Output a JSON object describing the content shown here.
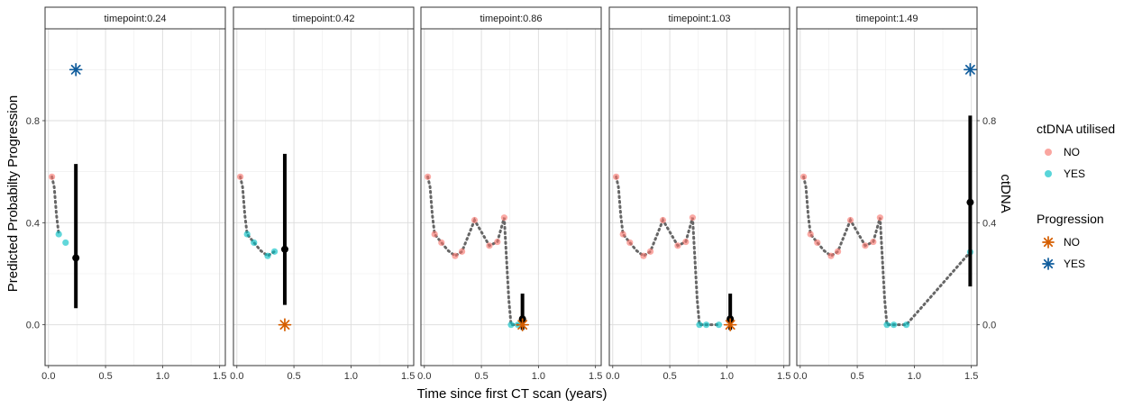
{
  "chart_data": {
    "type": "scatter",
    "xlabel": "Time since first CT scan (years)",
    "ylabel": "Predicted Probabilty Progression",
    "y2label": "ctDNA",
    "xlim": [
      -0.03,
      1.55
    ],
    "ylim": [
      -0.16,
      1.16
    ],
    "x_ticks": [
      0.0,
      0.5,
      1.0,
      1.5
    ],
    "x_tick_labels": [
      "0.0",
      "0.5",
      "1.0",
      "1.5"
    ],
    "y_ticks": [
      0.0,
      0.4,
      0.8
    ],
    "y_tick_labels": [
      "0.0",
      "0.4",
      "0.8"
    ],
    "grid": true,
    "colors": {
      "ctdna_no": "#F8766D",
      "ctdna_yes": "#00BFC4",
      "progression_no": "#D55E00",
      "progression_yes": "#0F5C9C",
      "path": "#666666",
      "estimate": "#000000"
    },
    "legends": [
      {
        "title": "ctDNA utilised",
        "kind": "dot",
        "entries": [
          {
            "label": "NO",
            "color": "#F8766D"
          },
          {
            "label": "YES",
            "color": "#00BFC4"
          }
        ]
      },
      {
        "title": "Progression",
        "kind": "star",
        "entries": [
          {
            "label": "NO",
            "color": "#D55E00"
          },
          {
            "label": "YES",
            "color": "#0F5C9C"
          }
        ]
      }
    ],
    "panels": [
      {
        "strip": "timepoint:0.24",
        "points": [
          {
            "x": 0.03,
            "y": 0.58,
            "ctdna": "NO"
          },
          {
            "x": 0.09,
            "y": 0.355,
            "ctdna": "YES"
          },
          {
            "x": 0.15,
            "y": 0.322,
            "ctdna": "YES"
          }
        ],
        "path": [
          [
            0.03,
            0.58
          ],
          [
            0.05,
            0.54
          ],
          [
            0.07,
            0.43
          ],
          [
            0.09,
            0.355
          ]
        ],
        "estimate": {
          "x": 0.24,
          "y": 0.262,
          "low": 0.065,
          "high": 0.63
        },
        "progression": {
          "x": 0.24,
          "y": 1.0,
          "status": "YES"
        }
      },
      {
        "strip": "timepoint:0.42",
        "points": [
          {
            "x": 0.03,
            "y": 0.58,
            "ctdna": "NO"
          },
          {
            "x": 0.09,
            "y": 0.355,
            "ctdna": "YES"
          },
          {
            "x": 0.15,
            "y": 0.322,
            "ctdna": "YES"
          },
          {
            "x": 0.27,
            "y": 0.27,
            "ctdna": "YES"
          },
          {
            "x": 0.33,
            "y": 0.287,
            "ctdna": "YES"
          }
        ],
        "path": [
          [
            0.03,
            0.58
          ],
          [
            0.05,
            0.54
          ],
          [
            0.07,
            0.43
          ],
          [
            0.09,
            0.355
          ],
          [
            0.15,
            0.322
          ],
          [
            0.21,
            0.29
          ],
          [
            0.27,
            0.27
          ],
          [
            0.33,
            0.287
          ]
        ],
        "estimate": {
          "x": 0.42,
          "y": 0.296,
          "low": 0.078,
          "high": 0.67
        },
        "progression": {
          "x": 0.42,
          "y": 0.0,
          "status": "NO"
        }
      },
      {
        "strip": "timepoint:0.86",
        "points": [
          {
            "x": 0.03,
            "y": 0.58,
            "ctdna": "NO"
          },
          {
            "x": 0.09,
            "y": 0.355,
            "ctdna": "NO"
          },
          {
            "x": 0.15,
            "y": 0.322,
            "ctdna": "NO"
          },
          {
            "x": 0.27,
            "y": 0.27,
            "ctdna": "NO"
          },
          {
            "x": 0.33,
            "y": 0.287,
            "ctdna": "NO"
          },
          {
            "x": 0.44,
            "y": 0.41,
            "ctdna": "NO"
          },
          {
            "x": 0.57,
            "y": 0.31,
            "ctdna": "NO"
          },
          {
            "x": 0.64,
            "y": 0.325,
            "ctdna": "NO"
          },
          {
            "x": 0.7,
            "y": 0.42,
            "ctdna": "NO"
          },
          {
            "x": 0.76,
            "y": 0.0,
            "ctdna": "YES"
          },
          {
            "x": 0.82,
            "y": 0.0,
            "ctdna": "YES"
          }
        ],
        "path": [
          [
            0.03,
            0.58
          ],
          [
            0.05,
            0.54
          ],
          [
            0.07,
            0.43
          ],
          [
            0.09,
            0.355
          ],
          [
            0.15,
            0.322
          ],
          [
            0.21,
            0.29
          ],
          [
            0.27,
            0.27
          ],
          [
            0.33,
            0.287
          ],
          [
            0.44,
            0.41
          ],
          [
            0.57,
            0.31
          ],
          [
            0.64,
            0.325
          ],
          [
            0.7,
            0.42
          ],
          [
            0.74,
            0.1
          ],
          [
            0.76,
            0.0
          ],
          [
            0.82,
            0.0
          ]
        ],
        "estimate": {
          "x": 0.86,
          "y": 0.023,
          "low": -0.02,
          "high": 0.122
        },
        "progression": {
          "x": 0.86,
          "y": 0.0,
          "status": "NO"
        }
      },
      {
        "strip": "timepoint:1.03",
        "points": [
          {
            "x": 0.03,
            "y": 0.58,
            "ctdna": "NO"
          },
          {
            "x": 0.09,
            "y": 0.355,
            "ctdna": "NO"
          },
          {
            "x": 0.15,
            "y": 0.322,
            "ctdna": "NO"
          },
          {
            "x": 0.27,
            "y": 0.27,
            "ctdna": "NO"
          },
          {
            "x": 0.33,
            "y": 0.287,
            "ctdna": "NO"
          },
          {
            "x": 0.44,
            "y": 0.41,
            "ctdna": "NO"
          },
          {
            "x": 0.57,
            "y": 0.31,
            "ctdna": "NO"
          },
          {
            "x": 0.64,
            "y": 0.325,
            "ctdna": "NO"
          },
          {
            "x": 0.7,
            "y": 0.42,
            "ctdna": "NO"
          },
          {
            "x": 0.76,
            "y": 0.0,
            "ctdna": "YES"
          },
          {
            "x": 0.82,
            "y": 0.0,
            "ctdna": "YES"
          },
          {
            "x": 0.93,
            "y": 0.0,
            "ctdna": "YES"
          }
        ],
        "path": [
          [
            0.03,
            0.58
          ],
          [
            0.05,
            0.54
          ],
          [
            0.07,
            0.43
          ],
          [
            0.09,
            0.355
          ],
          [
            0.15,
            0.322
          ],
          [
            0.21,
            0.29
          ],
          [
            0.27,
            0.27
          ],
          [
            0.33,
            0.287
          ],
          [
            0.44,
            0.41
          ],
          [
            0.57,
            0.31
          ],
          [
            0.64,
            0.325
          ],
          [
            0.7,
            0.42
          ],
          [
            0.74,
            0.1
          ],
          [
            0.76,
            0.0
          ],
          [
            0.82,
            0.0
          ],
          [
            0.93,
            0.0
          ]
        ],
        "estimate": {
          "x": 1.03,
          "y": 0.023,
          "low": -0.02,
          "high": 0.122
        },
        "progression": {
          "x": 1.03,
          "y": 0.0,
          "status": "NO"
        }
      },
      {
        "strip": "timepoint:1.49",
        "points": [
          {
            "x": 0.03,
            "y": 0.58,
            "ctdna": "NO"
          },
          {
            "x": 0.09,
            "y": 0.355,
            "ctdna": "NO"
          },
          {
            "x": 0.15,
            "y": 0.322,
            "ctdna": "NO"
          },
          {
            "x": 0.27,
            "y": 0.27,
            "ctdna": "NO"
          },
          {
            "x": 0.33,
            "y": 0.287,
            "ctdna": "NO"
          },
          {
            "x": 0.44,
            "y": 0.41,
            "ctdna": "NO"
          },
          {
            "x": 0.57,
            "y": 0.31,
            "ctdna": "NO"
          },
          {
            "x": 0.64,
            "y": 0.325,
            "ctdna": "NO"
          },
          {
            "x": 0.7,
            "y": 0.42,
            "ctdna": "NO"
          },
          {
            "x": 0.76,
            "y": 0.0,
            "ctdna": "YES"
          },
          {
            "x": 0.82,
            "y": 0.0,
            "ctdna": "YES"
          },
          {
            "x": 0.93,
            "y": 0.0,
            "ctdna": "YES"
          },
          {
            "x": 1.49,
            "y": 0.285,
            "ctdna": "YES"
          }
        ],
        "path": [
          [
            0.03,
            0.58
          ],
          [
            0.05,
            0.54
          ],
          [
            0.07,
            0.43
          ],
          [
            0.09,
            0.355
          ],
          [
            0.15,
            0.322
          ],
          [
            0.21,
            0.29
          ],
          [
            0.27,
            0.27
          ],
          [
            0.33,
            0.287
          ],
          [
            0.44,
            0.41
          ],
          [
            0.57,
            0.31
          ],
          [
            0.64,
            0.325
          ],
          [
            0.7,
            0.42
          ],
          [
            0.74,
            0.1
          ],
          [
            0.76,
            0.0
          ],
          [
            0.82,
            0.0
          ],
          [
            0.93,
            0.0
          ],
          [
            1.49,
            0.285
          ]
        ],
        "estimate": {
          "x": 1.49,
          "y": 0.48,
          "low": 0.15,
          "high": 0.82
        },
        "progression": {
          "x": 1.49,
          "y": 1.0,
          "status": "YES"
        }
      }
    ]
  }
}
